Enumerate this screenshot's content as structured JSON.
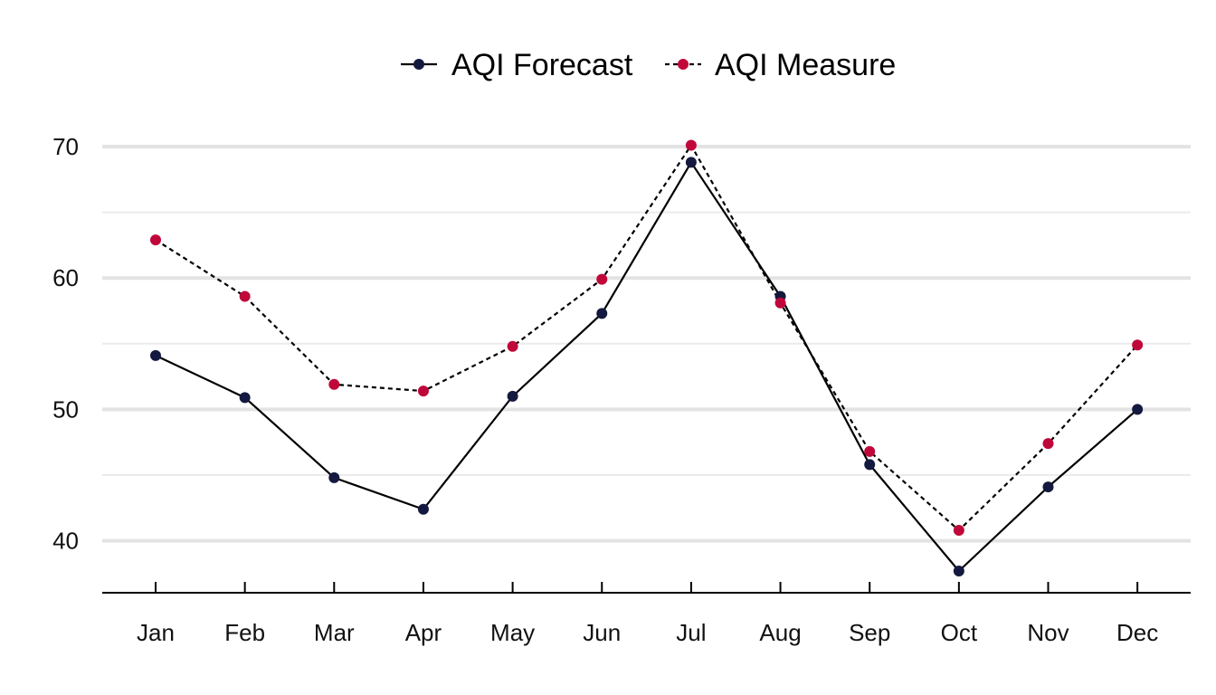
{
  "chart_data": {
    "type": "line",
    "title": "",
    "xlabel": "",
    "ylabel": "",
    "categories": [
      "Jan",
      "Feb",
      "Mar",
      "Apr",
      "May",
      "Jun",
      "Jul",
      "Aug",
      "Sep",
      "Oct",
      "Nov",
      "Dec"
    ],
    "series": [
      {
        "name": "AQI Forecast",
        "color": "#14193f",
        "line_color": "#000000",
        "line_style": "solid",
        "values": [
          54.1,
          50.9,
          44.8,
          42.4,
          51.0,
          57.3,
          68.8,
          58.6,
          45.8,
          37.7,
          44.1,
          50.0
        ]
      },
      {
        "name": "AQI Measure",
        "color": "#c0073a",
        "line_color": "#000000",
        "line_style": "dashed",
        "values": [
          62.9,
          58.6,
          51.9,
          51.4,
          54.8,
          59.9,
          70.1,
          58.1,
          46.8,
          40.8,
          47.4,
          54.9
        ]
      }
    ],
    "yticks": [
      40,
      50,
      60,
      70
    ],
    "yminor": [
      45,
      55,
      65
    ],
    "ylim": [
      36.1,
      72.0
    ],
    "grid": true,
    "legend_position": "top-center"
  }
}
